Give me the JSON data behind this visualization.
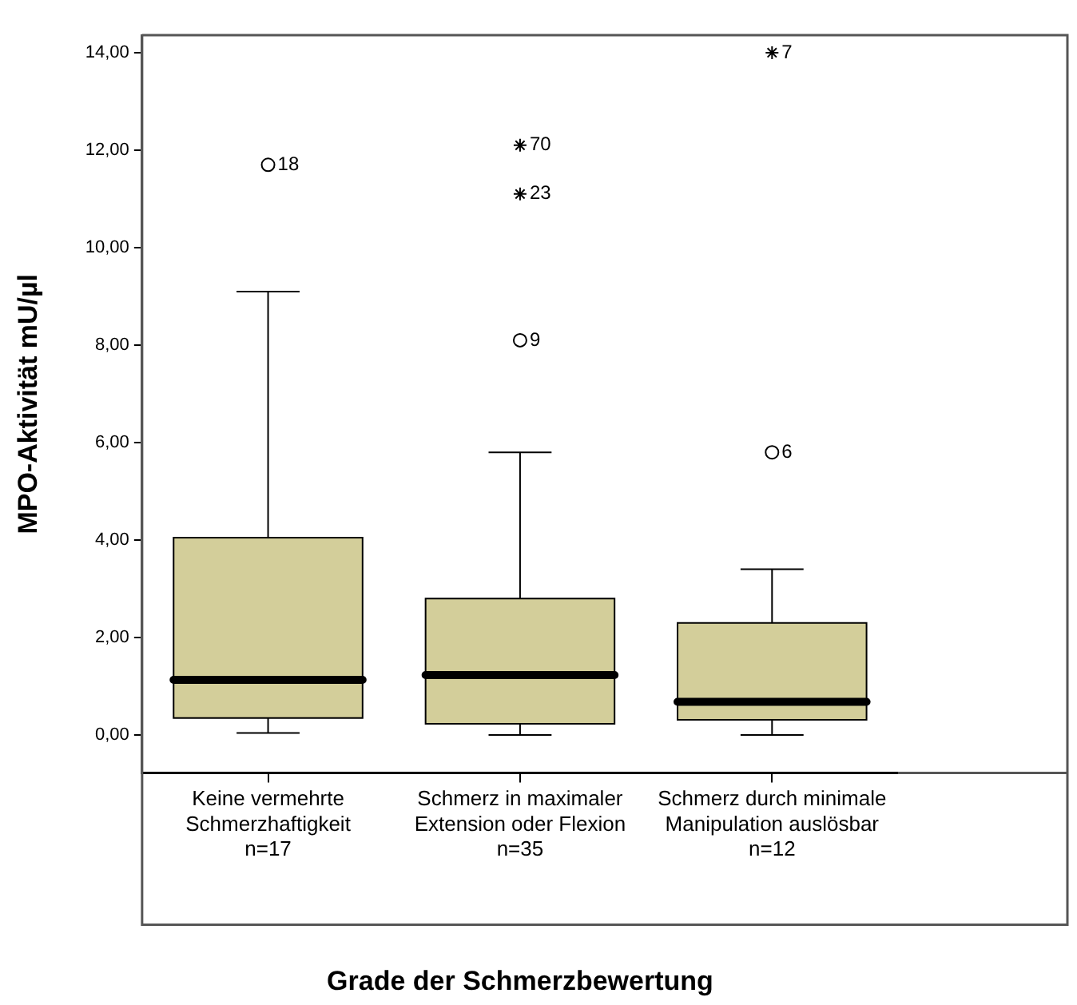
{
  "chart_data": {
    "type": "box",
    "xlabel": "Grade der Schmerzbewertung",
    "ylabel": "MPO-Aktivität mU/µl",
    "categories": [
      "Keine vermehrte\nSchmerzhaftigkeit\nn=17",
      "Schmerz in maximaler\nExtension oder Flexion\nn=35",
      "Schmerz durch minimale\nManipulation auslösbar\nn=12"
    ],
    "series": [
      {
        "color": "#d3ce9a",
        "boxes": [
          {
            "low": 0.04,
            "q1": 0.35,
            "median": 1.13,
            "q3": 4.05,
            "high": 9.1
          },
          {
            "low": 0.0,
            "q1": 0.23,
            "median": 1.23,
            "q3": 2.8,
            "high": 5.8
          },
          {
            "low": 0.0,
            "q1": 0.31,
            "median": 0.68,
            "q3": 2.3,
            "high": 3.4
          }
        ]
      },
      {
        "type": "scatter",
        "marker": "circle",
        "color": "#000000",
        "x": [
          "Keine vermehrte\nSchmerzhaftigkeit\nn=17",
          "Schmerz in maximaler\nExtension oder Flexion\nn=35",
          "Schmerz durch minimale\nManipulation auslösbar\nn=12"
        ],
        "values": [
          11.7,
          8.1,
          5.8
        ]
      },
      {
        "type": "scatter",
        "marker": "cross",
        "color": "#000000",
        "x": [
          "Schmerz in maximaler\nExtension oder Flexion\nn=35",
          "Schmerz in maximaler\nExtension oder Flexion\nn=35",
          "Schmerz durch minimale\nManipulation auslösbar\nn=12"
        ],
        "values": [
          12.1,
          11.1,
          14.0
        ]
      }
    ],
    "annotations": [
      {
        "text": "18",
        "x": "Keine vermehrte\nSchmerzhaftigkeit\nn=17",
        "y": 11.7
      },
      {
        "text": "70",
        "x": "Schmerz in maximaler\nExtension oder Flexion\nn=35",
        "y": 12.1
      },
      {
        "text": "23",
        "x": "Schmerz in maximaler\nExtension oder Flexion\nn=35",
        "y": 11.1
      },
      {
        "text": "9",
        "x": "Schmerz in maximaler\nExtension oder Flexion\nn=35",
        "y": 8.1
      },
      {
        "text": "7",
        "x": "Schmerz durch minimale\nManipulation auslösbar\nn=12",
        "y": 14.0
      },
      {
        "text": "6",
        "x": "Schmerz durch minimale\nManipulation auslösbar\nn=12",
        "y": 5.8
      }
    ],
    "ylim": [
      -0.78,
      14.36
    ],
    "yticks": [
      {
        "value": 0,
        "label": "0,00"
      },
      {
        "value": 2,
        "label": "2,00"
      },
      {
        "value": 4,
        "label": "4,00"
      },
      {
        "value": 6,
        "label": "6,00"
      },
      {
        "value": 8,
        "label": "8,00"
      },
      {
        "value": 10,
        "label": "10,00"
      },
      {
        "value": 12,
        "label": "12,00"
      },
      {
        "value": 14,
        "label": "14,00"
      }
    ],
    "grid": false,
    "legend": false
  }
}
